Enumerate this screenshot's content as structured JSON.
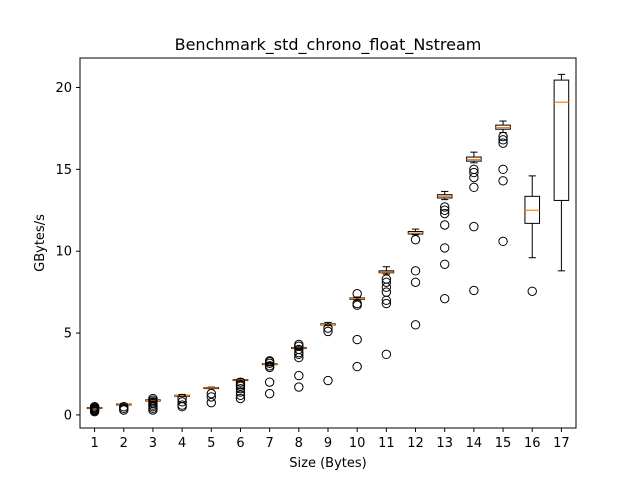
{
  "chart_data": {
    "type": "box",
    "title": "Benchmark_std_chrono_float_Nstream",
    "xlabel": "Size (Bytes)",
    "ylabel": "GBytes/s",
    "ylim": [
      -0.8,
      21.8
    ],
    "grid": false,
    "yticks": [
      0,
      5,
      10,
      15,
      20
    ],
    "categories": [
      "1",
      "2",
      "3",
      "4",
      "5",
      "6",
      "7",
      "8",
      "9",
      "10",
      "11",
      "12",
      "13",
      "14",
      "15",
      "16",
      "17"
    ],
    "boxes": [
      {
        "whislo": 0.35,
        "q1": 0.4,
        "med": 0.42,
        "q3": 0.45,
        "whishi": 0.5,
        "fliers": [
          0.2,
          0.25,
          0.3,
          0.35,
          0.4,
          0.45,
          0.5
        ]
      },
      {
        "whislo": 0.58,
        "q1": 0.62,
        "med": 0.65,
        "q3": 0.67,
        "whishi": 0.7,
        "fliers": [
          0.3,
          0.4,
          0.5
        ]
      },
      {
        "whislo": 0.8,
        "q1": 0.85,
        "med": 0.88,
        "q3": 0.92,
        "whishi": 1.0,
        "fliers": [
          0.3,
          0.4,
          0.5,
          0.6,
          0.7,
          0.8,
          0.9,
          1.0
        ]
      },
      {
        "whislo": 1.12,
        "q1": 1.15,
        "med": 1.18,
        "q3": 1.2,
        "whishi": 1.25,
        "fliers": [
          0.5,
          0.6,
          0.8,
          1.0
        ]
      },
      {
        "whislo": 1.6,
        "q1": 1.63,
        "med": 1.65,
        "q3": 1.67,
        "whishi": 1.7,
        "fliers": [
          0.75,
          1.1,
          1.3
        ]
      },
      {
        "whislo": 2.05,
        "q1": 2.1,
        "med": 2.13,
        "q3": 2.16,
        "whishi": 2.2,
        "fliers": [
          1.0,
          1.2,
          1.4,
          1.6,
          1.75,
          1.85,
          2.0
        ]
      },
      {
        "whislo": 3.0,
        "q1": 3.07,
        "med": 3.1,
        "q3": 3.13,
        "whishi": 3.2,
        "fliers": [
          1.3,
          2.0,
          2.9,
          3.0,
          3.15,
          3.25,
          3.3
        ]
      },
      {
        "whislo": 4.0,
        "q1": 4.05,
        "med": 4.08,
        "q3": 4.12,
        "whishi": 4.2,
        "fliers": [
          1.7,
          2.4,
          3.5,
          3.7,
          3.8,
          4.0,
          4.2,
          4.3
        ]
      },
      {
        "whislo": 5.45,
        "q1": 5.5,
        "med": 5.52,
        "q3": 5.56,
        "whishi": 5.65,
        "fliers": [
          2.1,
          5.1,
          5.3
        ]
      },
      {
        "whislo": 7.0,
        "q1": 7.06,
        "med": 7.1,
        "q3": 7.14,
        "whishi": 7.2,
        "fliers": [
          2.95,
          4.6,
          6.7,
          6.8,
          7.4
        ]
      },
      {
        "whislo": 8.6,
        "q1": 8.68,
        "med": 8.72,
        "q3": 8.8,
        "whishi": 9.05,
        "fliers": [
          3.7,
          6.8,
          7.0,
          7.5,
          7.8,
          8.1,
          8.3
        ]
      },
      {
        "whislo": 11.0,
        "q1": 11.05,
        "med": 11.1,
        "q3": 11.2,
        "whishi": 11.35,
        "fliers": [
          5.5,
          8.1,
          8.8,
          10.7
        ]
      },
      {
        "whislo": 13.15,
        "q1": 13.25,
        "med": 13.35,
        "q3": 13.45,
        "whishi": 13.65,
        "fliers": [
          7.1,
          9.2,
          10.2,
          11.6,
          12.3,
          12.5,
          12.7
        ]
      },
      {
        "whislo": 15.4,
        "q1": 15.5,
        "med": 15.6,
        "q3": 15.75,
        "whishi": 16.05,
        "fliers": [
          7.6,
          11.5,
          13.9,
          14.5,
          14.8,
          15.0
        ]
      },
      {
        "whislo": 17.25,
        "q1": 17.45,
        "med": 17.55,
        "q3": 17.7,
        "whishi": 17.95,
        "fliers": [
          10.6,
          14.3,
          15.0,
          16.6,
          16.8,
          17.0
        ]
      },
      {
        "whislo": 9.6,
        "q1": 11.7,
        "med": 12.5,
        "q3": 13.35,
        "whishi": 14.6,
        "fliers": [
          7.55
        ]
      },
      {
        "whislo": 8.8,
        "q1": 13.1,
        "med": 19.1,
        "q3": 20.45,
        "whishi": 20.8,
        "fliers": []
      }
    ],
    "colors": {
      "box": "#000000",
      "median": "#ff7f0e",
      "flier": "#000000",
      "background": "#ffffff"
    }
  }
}
